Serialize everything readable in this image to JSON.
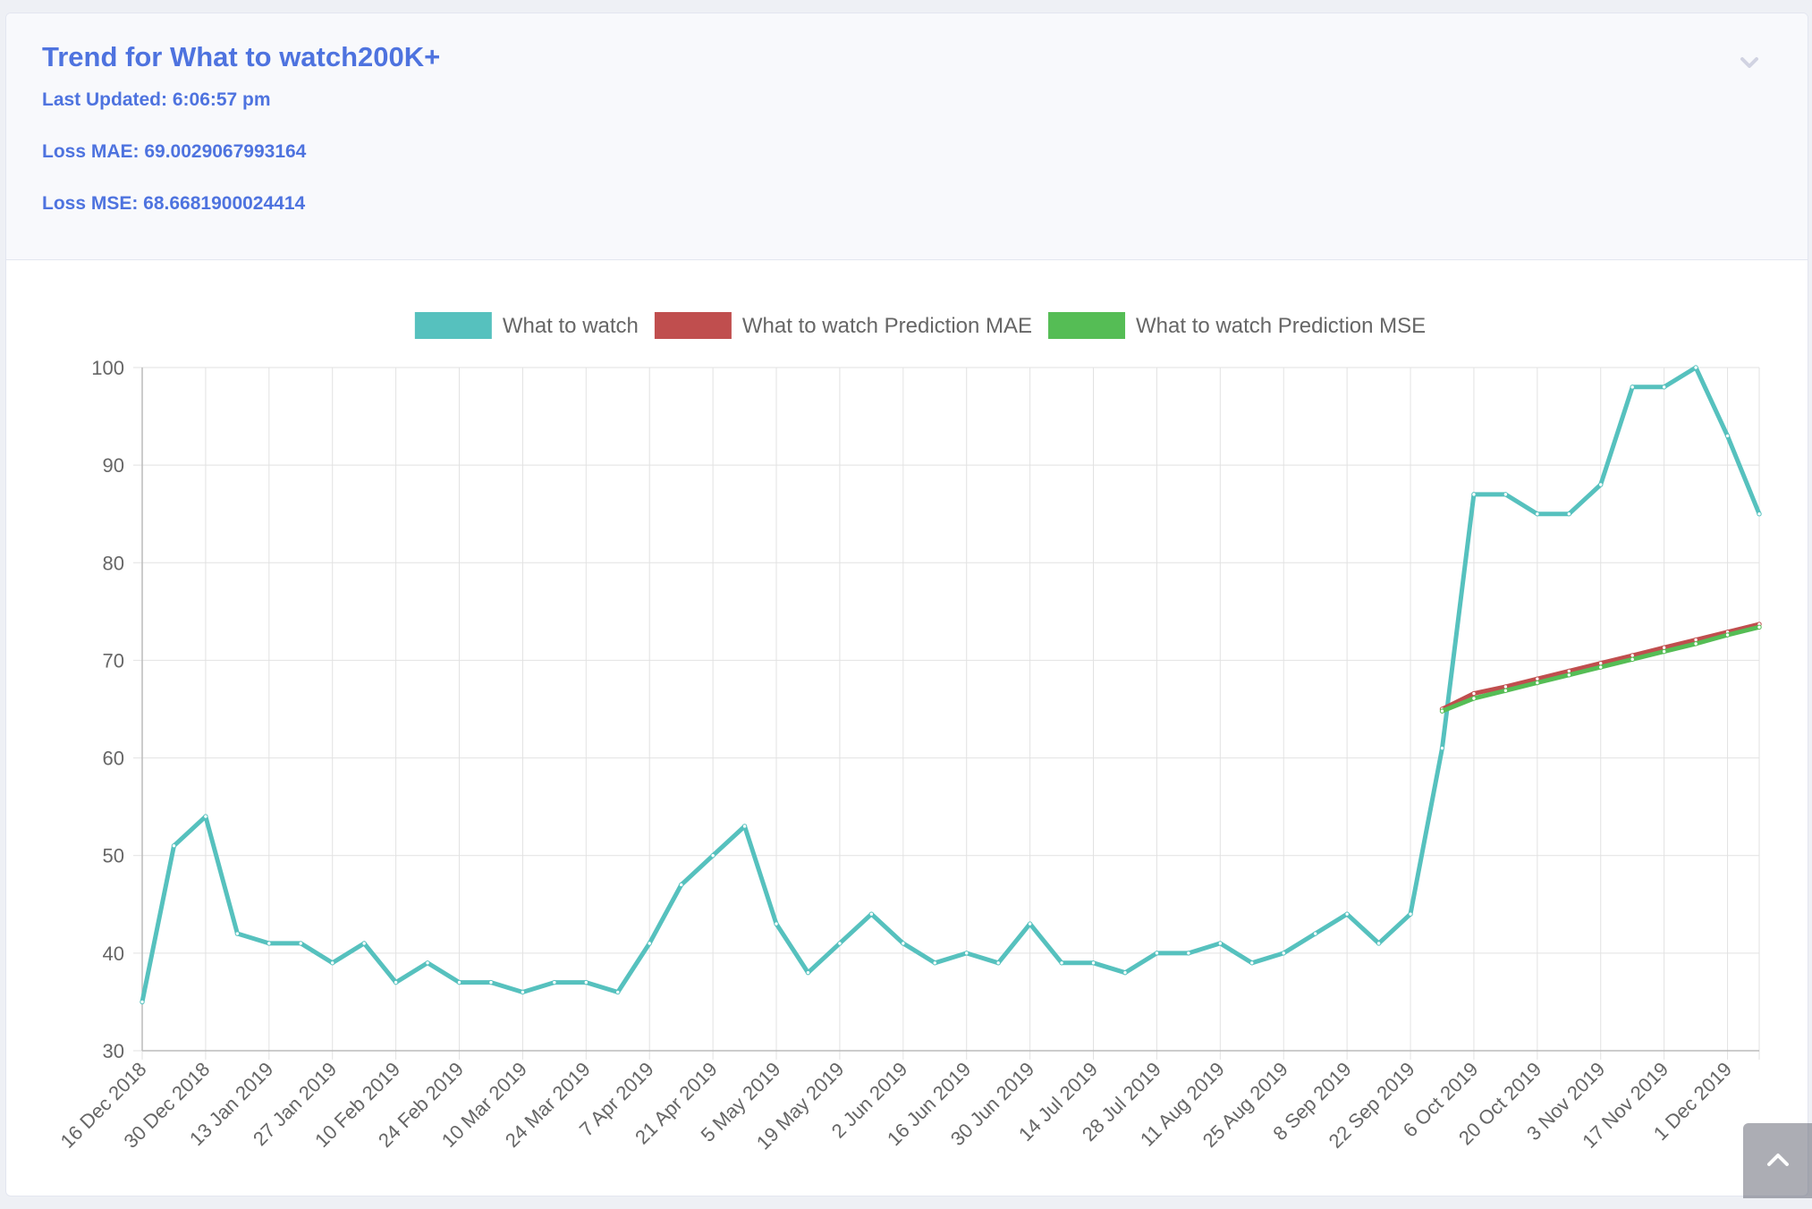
{
  "header": {
    "title": "Trend for What to watch200K+",
    "last_updated": "Last Updated: 6:06:57 pm",
    "loss_mae": "Loss MAE: 69.0029067993164",
    "loss_mse": "Loss MSE: 68.6681900024414"
  },
  "icons": {
    "collapse": "chevron-down-icon",
    "scroll_top": "chevron-up-icon"
  },
  "colors": {
    "accent": "#4e73df",
    "series_actual": "#56c1be",
    "series_mae": "#c04e4e",
    "series_mse": "#55bd55"
  },
  "chart_data": {
    "type": "line",
    "legend_position": "top",
    "grid": true,
    "ylim": [
      30,
      100
    ],
    "yticks": [
      "30",
      "40",
      "50",
      "60",
      "70",
      "80",
      "90",
      "100"
    ],
    "x_tick_labels": [
      "16 Dec 2018",
      "30 Dec 2018",
      "13 Jan 2019",
      "27 Jan 2019",
      "10 Feb 2019",
      "24 Feb 2019",
      "10 Mar 2019",
      "24 Mar 2019",
      "7 Apr 2019",
      "21 Apr 2019",
      "5 May 2019",
      "19 May 2019",
      "2 Jun 2019",
      "16 Jun 2019",
      "30 Jun 2019",
      "14 Jul 2019",
      "28 Jul 2019",
      "11 Aug 2019",
      "25 Aug 2019",
      "8 Sep 2019",
      "22 Sep 2019",
      "6 Oct 2019",
      "20 Oct 2019",
      "3 Nov 2019",
      "17 Nov 2019",
      "1 Dec 2019"
    ],
    "series": [
      {
        "name": "What to watch",
        "color": "#56c1be",
        "start_index": 0,
        "values": [
          35,
          51,
          54,
          42,
          41,
          41,
          39,
          41,
          37,
          39,
          37,
          37,
          36,
          37,
          37,
          36,
          41,
          47,
          50,
          53,
          43,
          38,
          41,
          44,
          41,
          39,
          40,
          39,
          43,
          39,
          39,
          38,
          40,
          40,
          41,
          39,
          40,
          42,
          44,
          41,
          44,
          61,
          87,
          87,
          85,
          85,
          88,
          98,
          98,
          100,
          93,
          85
        ]
      },
      {
        "name": "What to watch Prediction MAE",
        "color": "#c04e4e",
        "start_index": 41,
        "values": [
          65,
          66.6,
          67.3,
          68.1,
          68.9,
          69.7,
          70.5,
          71.3,
          72.1,
          72.9,
          73.7
        ]
      },
      {
        "name": "What to watch Prediction MSE",
        "color": "#55bd55",
        "start_index": 41,
        "values": [
          64.8,
          66.1,
          66.9,
          67.7,
          68.5,
          69.3,
          70.1,
          70.9,
          71.7,
          72.6,
          73.4
        ]
      }
    ]
  }
}
